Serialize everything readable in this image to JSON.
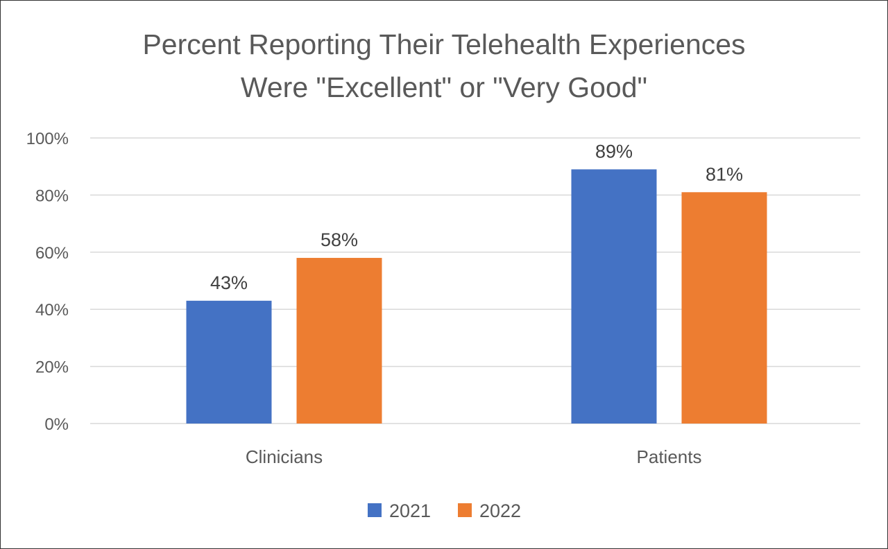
{
  "chart_data": {
    "type": "bar",
    "title": [
      "Percent Reporting Their Telehealth Experiences",
      "Were \"Excellent\" or \"Very Good\""
    ],
    "categories": [
      "Clinicians",
      "Patients"
    ],
    "series": [
      {
        "name": "2021",
        "values": [
          43,
          89
        ],
        "labels": [
          "43%",
          "89%"
        ],
        "color": "#4472C4"
      },
      {
        "name": "2022",
        "values": [
          58,
          81
        ],
        "labels": [
          "58%",
          "81%"
        ],
        "color": "#ED7D31"
      }
    ],
    "yticks": [
      "0%",
      "20%",
      "40%",
      "60%",
      "80%",
      "100%"
    ],
    "ylim": [
      0,
      100
    ],
    "xlabel": "",
    "ylabel": "",
    "grid": true,
    "legend": "bottom"
  }
}
